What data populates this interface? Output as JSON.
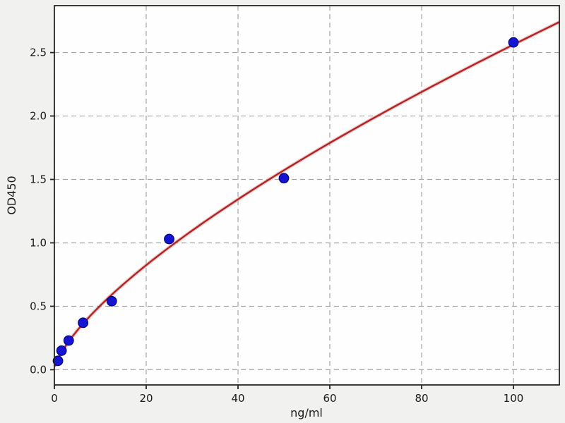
{
  "figure": {
    "background_color": "#f1f1ef",
    "plot_background_color": "#fefefe",
    "grid_color": "#a6a6a6",
    "spine_color": "#262626",
    "tick_color": "#262626"
  },
  "chart_data": {
    "type": "scatter",
    "title": "",
    "xlabel": "ng/ml",
    "ylabel": "OD450",
    "xlim": [
      0,
      110
    ],
    "ylim": [
      -0.12,
      2.87
    ],
    "x_ticks": [
      0,
      20,
      40,
      60,
      80,
      100
    ],
    "x_tick_labels": [
      "0",
      "20",
      "40",
      "60",
      "80",
      "100"
    ],
    "y_ticks": [
      0.0,
      0.5,
      1.0,
      1.5,
      2.0,
      2.5
    ],
    "y_tick_labels": [
      "0.0",
      "0.5",
      "1.0",
      "1.5",
      "2.0",
      "2.5"
    ],
    "grid": "dashed",
    "legend": null,
    "series": [
      {
        "name": "standard-points",
        "type": "scatter",
        "marker": "circle",
        "color": "#1414d2",
        "edge_color": "#000080",
        "x": [
          0.78,
          1.56,
          3.12,
          6.25,
          12.5,
          25,
          50,
          100
        ],
        "y": [
          0.07,
          0.15,
          0.23,
          0.37,
          0.54,
          1.03,
          1.51,
          2.58
        ]
      },
      {
        "name": "fit-curve",
        "type": "line",
        "color": "#b22424",
        "halo_color": "#e28a8a",
        "fit": {
          "model": "power",
          "k": 0.0997,
          "exponent": 0.705
        },
        "x_range": [
          0.15,
          110
        ]
      }
    ]
  }
}
